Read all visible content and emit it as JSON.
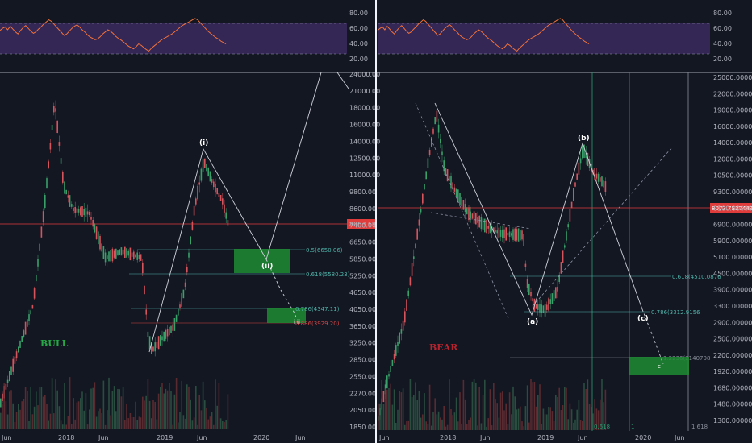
{
  "colors": {
    "background": "#131722",
    "divider": "#f0f3fa",
    "rsi_band": "#3b2a5e",
    "rsi_line": "#f2713a",
    "price_line": "#e03c3c",
    "green_zone": "#1f8b33",
    "fib_teal": "#4fb3a9",
    "fib_red": "#d64545",
    "wave_line": "#cfd2da",
    "bull": "#27a847",
    "bear": "#b7232e",
    "candle_up": "#3aa06a",
    "candle_down": "#d8545d",
    "vertical_green": "#2e9b73"
  },
  "panels": [
    {
      "id": "left",
      "rsi_ticks": [
        "80.00",
        "60.00",
        "40.00",
        "20.00"
      ],
      "rsi_values": [
        57,
        60,
        62,
        58,
        63,
        59,
        55,
        52,
        57,
        61,
        64,
        60,
        56,
        53,
        55,
        59,
        62,
        66,
        69,
        72,
        70,
        66,
        62,
        58,
        54,
        50,
        52,
        56,
        60,
        63,
        65,
        62,
        58,
        55,
        51,
        48,
        46,
        44,
        45,
        48,
        52,
        55,
        58,
        56,
        53,
        49,
        46,
        44,
        41,
        38,
        35,
        33,
        31,
        34,
        38,
        36,
        33,
        30,
        28,
        32,
        35,
        38,
        41,
        44,
        46,
        48,
        50,
        52,
        55,
        58,
        61,
        64,
        66,
        68,
        70,
        72,
        74,
        72,
        68,
        64,
        60,
        56,
        53,
        50,
        47,
        45,
        42,
        40,
        38
      ],
      "price_ticks": [
        "24000.00",
        "21000.00",
        "18000.00",
        "16000.00",
        "14000.00",
        "12500.00",
        "11000.00",
        "9800.00",
        "8600.00",
        "7400.00",
        "6650.00",
        "5850.00",
        "5250.00",
        "4650.00",
        "4050.00",
        "3650.00",
        "3250.00",
        "2850.00",
        "2550.00",
        "2270.00",
        "2050.00",
        "1850.00"
      ],
      "x_ticks": [
        "Jun",
        "2018",
        "Jun",
        "2019",
        "Jun",
        "2020",
        "Jun"
      ],
      "current_price": "8063.69",
      "fib_labels": [
        {
          "label": "0.5(6650.06)",
          "price": 6650.06
        },
        {
          "label": "0.618(5580.23)",
          "price": 5580.23
        },
        {
          "label": "0.786(4347.11)",
          "price": 4347.11
        },
        {
          "label": "0.886(3929.20)",
          "price": 3929.2
        }
      ],
      "waves": [
        "(i)",
        "(ii)",
        "i",
        "ii"
      ],
      "scenario": "BULL"
    },
    {
      "id": "right",
      "rsi_ticks": [
        "80.00",
        "60.00",
        "40.00",
        "20.00"
      ],
      "rsi_values": [
        57,
        60,
        62,
        58,
        63,
        59,
        55,
        52,
        57,
        61,
        64,
        60,
        56,
        53,
        55,
        59,
        62,
        66,
        69,
        72,
        70,
        66,
        62,
        58,
        54,
        50,
        52,
        56,
        60,
        63,
        65,
        62,
        58,
        55,
        51,
        48,
        46,
        44,
        45,
        48,
        52,
        55,
        58,
        56,
        53,
        49,
        46,
        44,
        41,
        38,
        35,
        33,
        31,
        34,
        38,
        36,
        33,
        30,
        28,
        32,
        35,
        38,
        41,
        44,
        46,
        48,
        50,
        52,
        55,
        58,
        61,
        64,
        66,
        68,
        70,
        72,
        74,
        72,
        68,
        64,
        60,
        56,
        53,
        50,
        47,
        45,
        42,
        40,
        38
      ],
      "price_ticks": [
        "25000.00000000",
        "22000.00000000",
        "19000.00000000",
        "16000.00000000",
        "14000.00000000",
        "12000.00000000",
        "10500.00000000",
        "9300.00000000",
        "8100.00000000",
        "6900.00000000",
        "5900.00000000",
        "5100.00000000",
        "4500.00000000",
        "3900.00000000",
        "3300.00000000",
        "2900.00000000",
        "2500.00000000",
        "2200.00000000",
        "1920.00000000",
        "1680.00000000",
        "1480.00000000",
        "1300.00000000"
      ],
      "x_ticks": [
        "Jun",
        "2018",
        "Jun",
        "2019",
        "Jun",
        "2020",
        "Jun"
      ],
      "current_price": "8073.75374498",
      "fib_labels": [
        {
          "label": "0.618(4510.0876",
          "price": 4510.0876
        },
        {
          "label": "0.786(3312.9156",
          "price": 3312.9156
        },
        {
          "label": "1.2236(2140708",
          "price": 2140.708
        }
      ],
      "waves": [
        "(a)",
        "(b)",
        "(c)",
        "c"
      ],
      "scenario": "BEAR",
      "time_fib_labels": [
        "0.618",
        "1",
        "1.618"
      ]
    }
  ]
}
